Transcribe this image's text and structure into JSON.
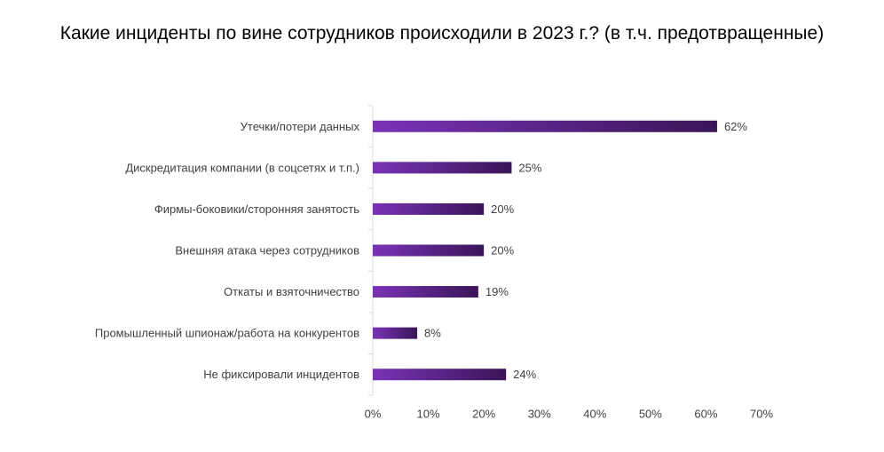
{
  "chart_data": {
    "type": "bar",
    "orientation": "horizontal",
    "title": "Какие инциденты по вине сотрудников происходили в 2023 г.? (в т.ч. предотвращенные)",
    "categories": [
      "Утечки/потери данных",
      "Дискредитация компании (в соцсетях и т.п.)",
      "Фирмы-боковики/сторонняя занятость",
      "Внешняя атака через сотрудников",
      "Откаты и взяточничество",
      "Промышленный шпионаж/работа на конкурентов",
      "Не фиксировали инцидентов"
    ],
    "values": [
      62,
      25,
      20,
      20,
      19,
      8,
      24
    ],
    "value_labels": [
      "62%",
      "25%",
      "20%",
      "20%",
      "19%",
      "8%",
      "24%"
    ],
    "xlim": [
      0,
      70
    ],
    "xticks": [
      0,
      10,
      20,
      30,
      40,
      50,
      60,
      70
    ],
    "xtick_labels": [
      "0%",
      "10%",
      "20%",
      "30%",
      "40%",
      "50%",
      "60%",
      "70%"
    ],
    "grid": false,
    "legend": "none",
    "bar_gradient": [
      "#7a33b6",
      "#3a1558"
    ]
  }
}
